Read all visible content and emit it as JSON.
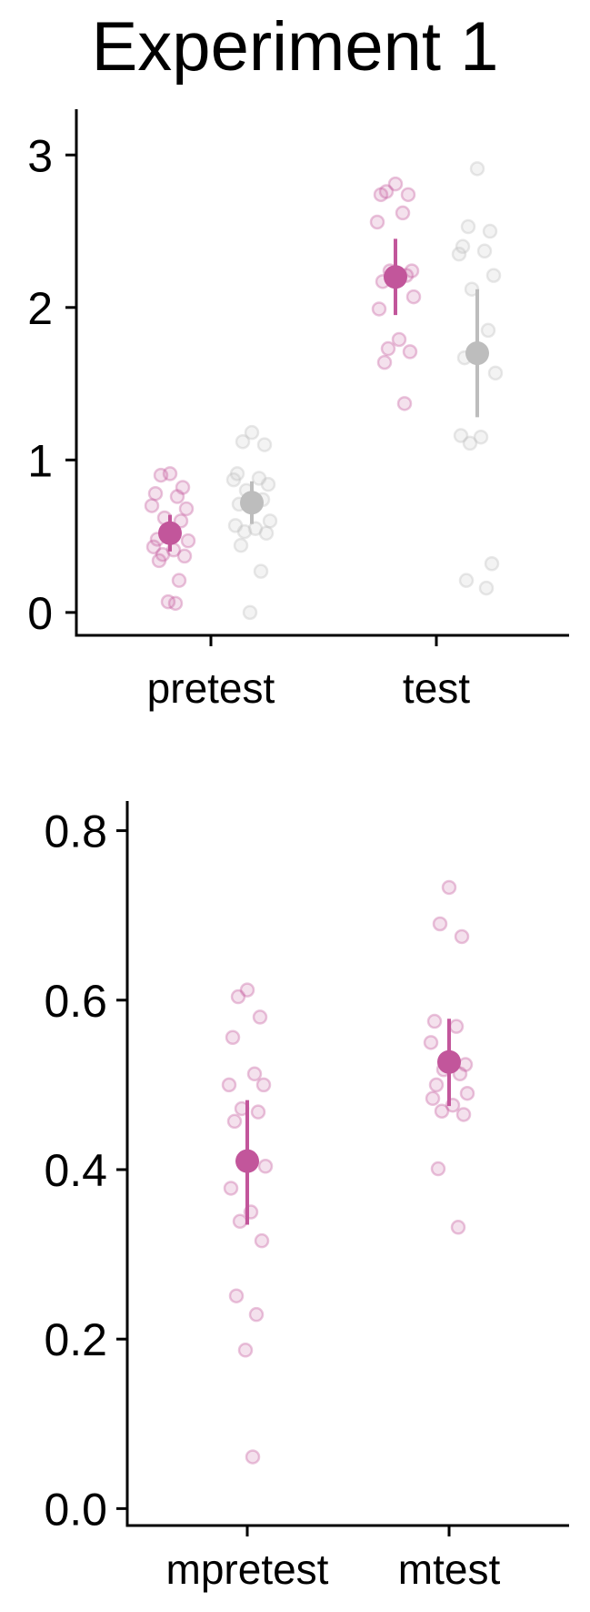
{
  "title": "Experiment 1",
  "colors": {
    "pink": "#C2569B",
    "grey": "#BDBDBD",
    "axis": "#000000"
  },
  "chart_data": [
    {
      "type": "scatter",
      "title": "Experiment 1",
      "xlabel": "",
      "ylabel": "",
      "categories": [
        "pretest",
        "test"
      ],
      "ylim": [
        -0.15,
        3.3
      ],
      "yticks": [
        0,
        1,
        2,
        3
      ],
      "grid": false,
      "series": [
        {
          "color": "#C2569B",
          "means": [
            0.52,
            2.2
          ],
          "ci_low": [
            0.4,
            1.95
          ],
          "ci_high": [
            0.64,
            2.45
          ],
          "points": [
            [
              0.91,
              0.9,
              0.82,
              0.78,
              0.76,
              0.7,
              0.68,
              0.62,
              0.6,
              0.48,
              0.47,
              0.43,
              0.41,
              0.38,
              0.37,
              0.34,
              0.21,
              0.07,
              0.06
            ],
            [
              2.81,
              2.76,
              2.74,
              2.74,
              2.62,
              2.56,
              2.24,
              2.24,
              2.21,
              2.17,
              2.07,
              1.99,
              1.79,
              1.73,
              1.71,
              1.64,
              1.37
            ]
          ]
        },
        {
          "color": "#BDBDBD",
          "means": [
            0.72,
            1.7
          ],
          "ci_low": [
            0.58,
            1.28
          ],
          "ci_high": [
            0.86,
            2.12
          ],
          "points": [
            [
              1.18,
              1.12,
              1.1,
              0.91,
              0.88,
              0.87,
              0.84,
              0.8,
              0.74,
              0.71,
              0.6,
              0.57,
              0.55,
              0.53,
              0.52,
              0.44,
              0.27,
              0.0
            ],
            [
              2.91,
              2.53,
              2.5,
              2.4,
              2.37,
              2.35,
              2.21,
              2.12,
              1.85,
              1.67,
              1.57,
              1.16,
              1.15,
              1.11,
              0.32,
              0.21,
              0.16
            ]
          ]
        }
      ]
    },
    {
      "type": "scatter",
      "xlabel": "",
      "ylabel": "",
      "categories": [
        "mpretest",
        "mtest"
      ],
      "ylim": [
        -0.02,
        0.835
      ],
      "yticks": [
        "0.0",
        "0.2",
        "0.4",
        "0.6",
        "0.8"
      ],
      "grid": false,
      "series": [
        {
          "color": "#C2569B",
          "means": [
            0.41,
            0.527
          ],
          "ci_low": [
            0.335,
            0.475
          ],
          "ci_high": [
            0.482,
            0.578
          ],
          "points": [
            [
              0.612,
              0.604,
              0.58,
              0.556,
              0.513,
              0.5,
              0.5,
              0.472,
              0.468,
              0.457,
              0.404,
              0.378,
              0.35,
              0.339,
              0.316,
              0.251,
              0.229,
              0.187,
              0.061
            ],
            [
              0.733,
              0.69,
              0.675,
              0.575,
              0.569,
              0.55,
              0.524,
              0.518,
              0.513,
              0.5,
              0.49,
              0.484,
              0.476,
              0.469,
              0.465,
              0.401,
              0.332
            ]
          ]
        }
      ]
    }
  ]
}
